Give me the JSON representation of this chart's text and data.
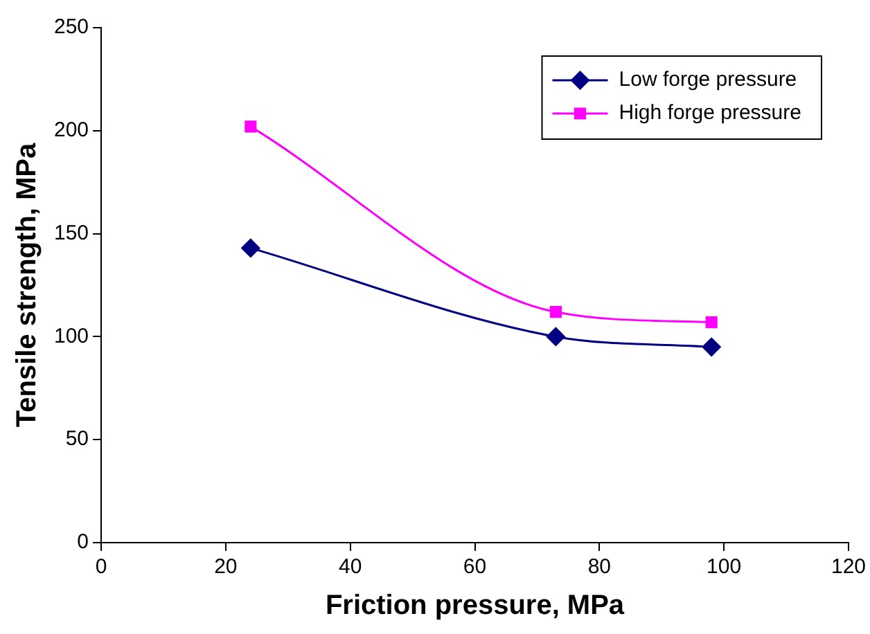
{
  "chart_data": {
    "type": "line",
    "xlabel": "Friction pressure, MPa",
    "ylabel": "Tensile strength, MPa",
    "xlim": [
      0,
      120
    ],
    "xticks": [
      0,
      20,
      40,
      60,
      80,
      100,
      120
    ],
    "ylim": [
      0,
      250
    ],
    "yticks": [
      0,
      50,
      100,
      150,
      200,
      250
    ],
    "grid": false,
    "legend": "top right",
    "series": [
      {
        "name": "Low forge pressure",
        "color": "#000080",
        "marker": "diamond",
        "x": [
          24,
          73,
          98
        ],
        "values": [
          143,
          100,
          95
        ]
      },
      {
        "name": "High forge pressure",
        "color": "#ff00ff",
        "marker": "square",
        "x": [
          24,
          73,
          98
        ],
        "values": [
          202,
          112,
          107
        ]
      }
    ]
  }
}
